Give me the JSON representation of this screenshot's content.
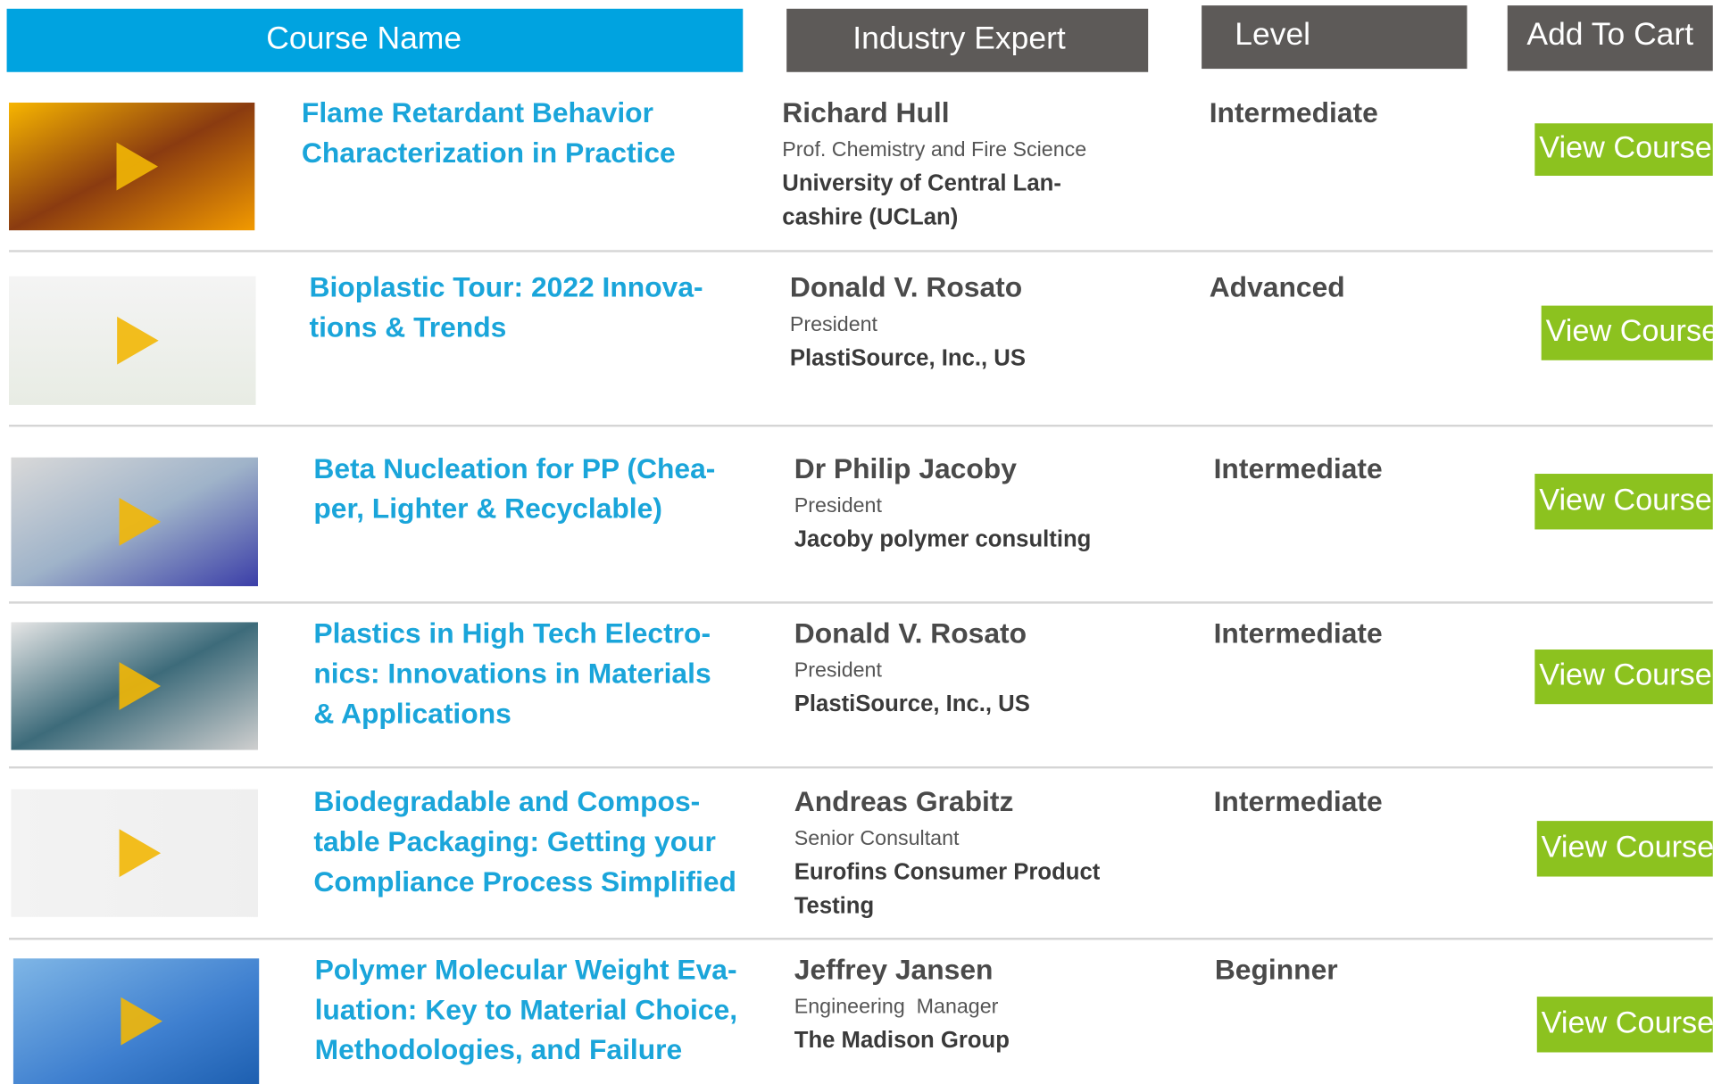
{
  "header": {
    "course_name": "Course Name",
    "industry_expert": "Industry Expert",
    "level": "Level",
    "add_to_cart": "Add To Cart"
  },
  "rows": [
    {
      "course_lines": [
        "Flame Retardant Behavior",
        "Characterization in Practice"
      ],
      "expert": "Richard Hull",
      "role": "Prof. Chemistry and Fire Science",
      "org_lines": [
        "University of Central Lan-",
        "cashire (UCLan)"
      ],
      "level": "Intermediate",
      "button": "View Course"
    },
    {
      "course_lines": [
        "Bioplastic Tour: 2022 Innova-",
        "tions & Trends"
      ],
      "expert": "Donald V. Rosato",
      "role": "President",
      "org_lines": [
        "PlastiSource, Inc., US"
      ],
      "level": "Advanced",
      "button": "View Course"
    },
    {
      "course_lines": [
        "Beta Nucleation for PP (Chea-",
        "per, Lighter & Recyclable)"
      ],
      "expert": "Dr Philip Jacoby",
      "role": "President",
      "org_lines": [
        "Jacoby polymer consulting"
      ],
      "level": "Intermediate",
      "button": "View Course"
    },
    {
      "course_lines": [
        "Plastics in High Tech Electro-",
        "nics: Innovations in Materials",
        "& Applications"
      ],
      "expert": "Donald V. Rosato",
      "role": "President",
      "org_lines": [
        "PlastiSource, Inc., US"
      ],
      "level": "Intermediate",
      "button": "View Course"
    },
    {
      "course_lines": [
        "Biodegradable and Compos-",
        "table Packaging: Getting your",
        "Compliance Process Simplified"
      ],
      "expert": "Andreas Grabitz",
      "role": "Senior Consultant",
      "org_lines": [
        "Eurofins Consumer Product",
        "Testing"
      ],
      "level": "Intermediate",
      "button": "View Course"
    },
    {
      "course_lines": [
        "Polymer Molecular Weight Eva-",
        "luation: Key to Material Choice,",
        "Methodologies, and Failure"
      ],
      "expert": "Jeffrey Jansen",
      "role": "Engineering  Manager",
      "org_lines": [
        "The Madison Group"
      ],
      "level": "Beginner",
      "button": "View Course"
    }
  ]
}
